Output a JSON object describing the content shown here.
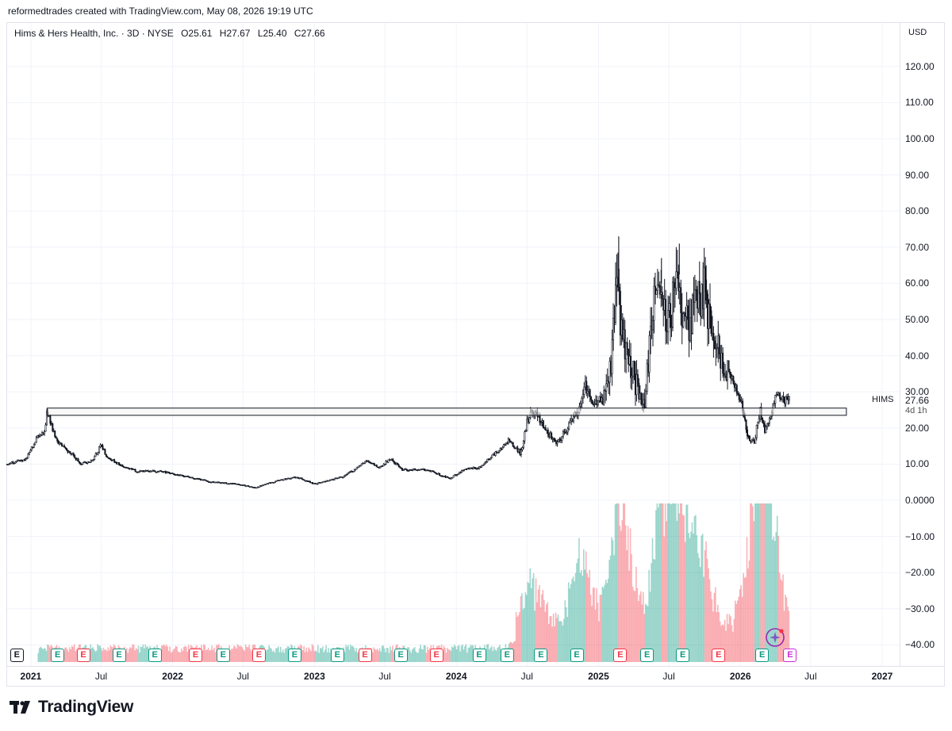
{
  "header": {
    "attribution": "reformedtrades created with TradingView.com, May 08, 2026 19:19 UTC",
    "symbol_name": "Hims & Hers Health, Inc. · 3D · NYSE",
    "open": "O25.61",
    "high": "H27.67",
    "low": "L25.40",
    "close": "C27.66"
  },
  "price_axis": {
    "currency": "USD",
    "ticks": [
      "120.00",
      "110.00",
      "100.00",
      "90.00",
      "80.00",
      "70.00",
      "60.00",
      "50.00",
      "40.00",
      "30.00",
      "20.00",
      "10.00",
      "0.0000",
      "−10.00",
      "−20.00",
      "−30.00",
      "−40.00"
    ]
  },
  "last_price": {
    "symbol": "HIMS",
    "price": "27.66",
    "countdown": "4d 1h"
  },
  "time_axis": {
    "ticks": [
      {
        "label": "2021",
        "major": true
      },
      {
        "label": "Jul",
        "major": false
      },
      {
        "label": "2022",
        "major": true
      },
      {
        "label": "Jul",
        "major": false
      },
      {
        "label": "2023",
        "major": true
      },
      {
        "label": "Jul",
        "major": false
      },
      {
        "label": "2024",
        "major": true
      },
      {
        "label": "Jul",
        "major": false
      },
      {
        "label": "2025",
        "major": true
      },
      {
        "label": "Jul",
        "major": false
      },
      {
        "label": "2026",
        "major": true
      },
      {
        "label": "Jul",
        "major": false
      },
      {
        "label": "2027",
        "major": true
      }
    ]
  },
  "events": {
    "label": "E",
    "items": [
      "neutral",
      "positive",
      "negative",
      "positive",
      "positive",
      "negative",
      "positive",
      "negative",
      "positive",
      "positive",
      "negative",
      "positive",
      "negative",
      "positive",
      "positive",
      "positive",
      "positive",
      "negative",
      "positive",
      "positive",
      "negative",
      "positive",
      "future"
    ]
  },
  "colors": {
    "candle": "#131722",
    "volume_up": "#089981",
    "volume_down": "#f23645",
    "grid": "#f0f3fa",
    "zone_border": "#131722",
    "zone_fill": "#f2f2f2",
    "event_future": "#cc2bd9"
  },
  "icons": {
    "assistant": "sparkle-assistant-icon",
    "brand": "tradingview-logo-icon"
  },
  "footer": {
    "brand": "TradingView"
  },
  "chart_data": {
    "type": "candlestick",
    "title": "Hims & Hers Health, Inc. · 3D · NYSE",
    "interval": "3D",
    "x_range": [
      "2020-11-01",
      "2027-02-15"
    ],
    "ylim": [
      -45,
      125
    ],
    "grid": true,
    "price_path": [
      [
        "2020-11-01",
        10.0
      ],
      [
        "2020-12-20",
        11.5
      ],
      [
        "2021-01-15",
        17.0
      ],
      [
        "2021-02-05",
        19.0
      ],
      [
        "2021-02-12",
        25.0
      ],
      [
        "2021-02-25",
        20.0
      ],
      [
        "2021-03-10",
        16.0
      ],
      [
        "2021-04-15",
        13.0
      ],
      [
        "2021-05-10",
        10.0
      ],
      [
        "2021-06-10",
        11.0
      ],
      [
        "2021-07-01",
        15.5
      ],
      [
        "2021-07-15",
        12.0
      ],
      [
        "2021-08-15",
        10.0
      ],
      [
        "2021-10-01",
        8.0
      ],
      [
        "2021-12-01",
        8.0
      ],
      [
        "2022-01-15",
        7.0
      ],
      [
        "2022-03-01",
        6.0
      ],
      [
        "2022-04-15",
        5.0
      ],
      [
        "2022-06-15",
        4.5
      ],
      [
        "2022-08-01",
        3.5
      ],
      [
        "2022-10-01",
        5.5
      ],
      [
        "2022-11-15",
        6.5
      ],
      [
        "2023-01-01",
        4.5
      ],
      [
        "2023-03-15",
        6.5
      ],
      [
        "2023-04-15",
        8.5
      ],
      [
        "2023-05-15",
        11.0
      ],
      [
        "2023-06-15",
        9.0
      ],
      [
        "2023-07-15",
        11.5
      ],
      [
        "2023-08-15",
        8.5
      ],
      [
        "2023-10-15",
        8.5
      ],
      [
        "2023-12-15",
        6.0
      ],
      [
        "2024-01-20",
        8.5
      ],
      [
        "2024-03-01",
        9.0
      ],
      [
        "2024-04-15",
        13.5
      ],
      [
        "2024-05-15",
        16.5
      ],
      [
        "2024-06-15",
        13.0
      ],
      [
        "2024-07-01",
        22.0
      ],
      [
        "2024-07-20",
        25.0
      ],
      [
        "2024-08-20",
        19.0
      ],
      [
        "2024-09-15",
        15.5
      ],
      [
        "2024-10-15",
        20.0
      ],
      [
        "2024-11-15",
        26.0
      ],
      [
        "2024-11-25",
        32.0
      ],
      [
        "2024-12-15",
        28.0
      ],
      [
        "2025-01-10",
        27.0
      ],
      [
        "2025-02-01",
        38.0
      ],
      [
        "2025-02-20",
        64.0
      ],
      [
        "2025-03-01",
        45.0
      ],
      [
        "2025-04-15",
        30.0
      ],
      [
        "2025-05-01",
        27.0
      ],
      [
        "2025-05-20",
        54.0
      ],
      [
        "2025-06-10",
        62.0
      ],
      [
        "2025-06-25",
        47.0
      ],
      [
        "2025-07-10",
        54.0
      ],
      [
        "2025-07-25",
        66.0
      ],
      [
        "2025-08-10",
        47.0
      ],
      [
        "2025-09-15",
        55.0
      ],
      [
        "2025-10-01",
        58.0
      ],
      [
        "2025-10-20",
        45.0
      ],
      [
        "2025-11-15",
        39.0
      ],
      [
        "2025-12-10",
        33.0
      ],
      [
        "2026-01-05",
        26.0
      ],
      [
        "2026-01-20",
        18.0
      ],
      [
        "2026-02-05",
        15.5
      ],
      [
        "2026-02-20",
        25.0
      ],
      [
        "2026-03-05",
        19.0
      ],
      [
        "2026-03-20",
        24.0
      ],
      [
        "2026-04-05",
        31.0
      ],
      [
        "2026-04-20",
        28.0
      ],
      [
        "2026-05-08",
        27.66
      ]
    ],
    "volume_pattern": "bars peak around Feb–Sep 2025 and Feb–Apr 2026",
    "horizontal_zone": {
      "from": "2021-02-12",
      "to": "2026-10-01",
      "ylim": [
        23.5,
        25.5
      ]
    },
    "last": {
      "open": 25.61,
      "high": 27.67,
      "low": 25.4,
      "close": 27.66
    }
  }
}
